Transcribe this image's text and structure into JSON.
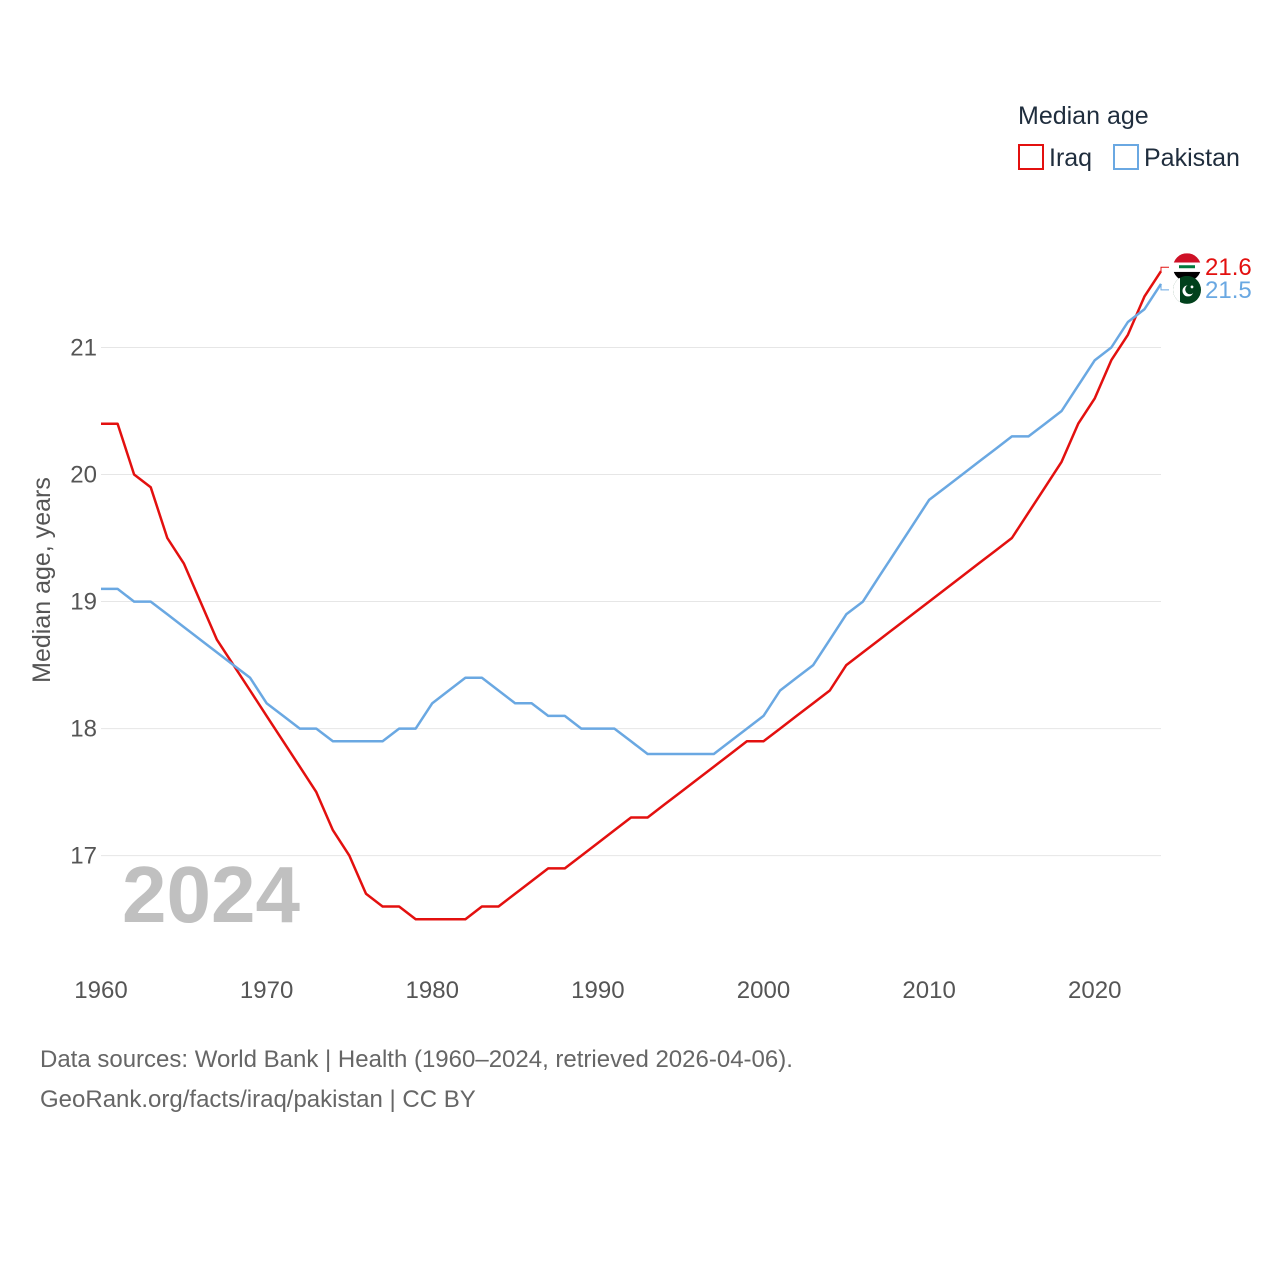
{
  "chart_data": {
    "type": "line",
    "title": "",
    "xlabel": "",
    "ylabel": "Median age, years",
    "xlim": [
      1960,
      2024
    ],
    "ylim": [
      16.1,
      22.2
    ],
    "xticks": [
      1960,
      1970,
      1980,
      1990,
      2000,
      2010,
      2020
    ],
    "yticks": [
      17,
      18,
      19,
      20,
      21
    ],
    "grid": true,
    "legend": {
      "title": "Median age",
      "position": "top-right"
    },
    "year_label": "2024",
    "x": [
      1960,
      1961,
      1962,
      1963,
      1964,
      1965,
      1966,
      1967,
      1968,
      1969,
      1970,
      1971,
      1972,
      1973,
      1974,
      1975,
      1976,
      1977,
      1978,
      1979,
      1980,
      1981,
      1982,
      1983,
      1984,
      1985,
      1986,
      1987,
      1988,
      1989,
      1990,
      1991,
      1992,
      1993,
      1994,
      1995,
      1996,
      1997,
      1998,
      1999,
      2000,
      2001,
      2002,
      2003,
      2004,
      2005,
      2006,
      2007,
      2008,
      2009,
      2010,
      2011,
      2012,
      2013,
      2014,
      2015,
      2016,
      2017,
      2018,
      2019,
      2020,
      2021,
      2022,
      2023,
      2024
    ],
    "series": [
      {
        "name": "Iraq",
        "color": "#e3100f",
        "end_label": "21.6",
        "flag_icon": "iraq-flag-icon",
        "values": [
          20.4,
          20.4,
          20.0,
          19.9,
          19.5,
          19.3,
          19.0,
          18.7,
          18.5,
          18.3,
          18.1,
          17.9,
          17.7,
          17.5,
          17.2,
          17.0,
          16.7,
          16.6,
          16.6,
          16.5,
          16.5,
          16.5,
          16.5,
          16.6,
          16.6,
          16.7,
          16.8,
          16.9,
          16.9,
          17.0,
          17.1,
          17.2,
          17.3,
          17.3,
          17.4,
          17.5,
          17.6,
          17.7,
          17.8,
          17.9,
          17.9,
          18.0,
          18.1,
          18.2,
          18.3,
          18.5,
          18.6,
          18.7,
          18.8,
          18.9,
          19.0,
          19.1,
          19.2,
          19.3,
          19.4,
          19.5,
          19.7,
          19.9,
          20.1,
          20.4,
          20.6,
          20.9,
          21.1,
          21.4,
          21.6
        ]
      },
      {
        "name": "Pakistan",
        "color": "#6aa8e2",
        "end_label": "21.5",
        "flag_icon": "pakistan-flag-icon",
        "values": [
          19.1,
          19.1,
          19.0,
          19.0,
          18.9,
          18.8,
          18.7,
          18.6,
          18.5,
          18.4,
          18.2,
          18.1,
          18.0,
          18.0,
          17.9,
          17.9,
          17.9,
          17.9,
          18.0,
          18.0,
          18.2,
          18.3,
          18.4,
          18.4,
          18.3,
          18.2,
          18.2,
          18.1,
          18.1,
          18.0,
          18.0,
          18.0,
          17.9,
          17.8,
          17.8,
          17.8,
          17.8,
          17.8,
          17.9,
          18.0,
          18.1,
          18.3,
          18.4,
          18.5,
          18.7,
          18.9,
          19.0,
          19.2,
          19.4,
          19.6,
          19.8,
          19.9,
          20.0,
          20.1,
          20.2,
          20.3,
          20.3,
          20.4,
          20.5,
          20.7,
          20.9,
          21.0,
          21.2,
          21.3,
          21.5
        ]
      }
    ]
  },
  "footer": {
    "sources": "Data sources: World Bank | Health (1960–2024, retrieved 2026-04-06).",
    "link": "GeoRank.org/facts/iraq/pakistan | CC BY"
  }
}
